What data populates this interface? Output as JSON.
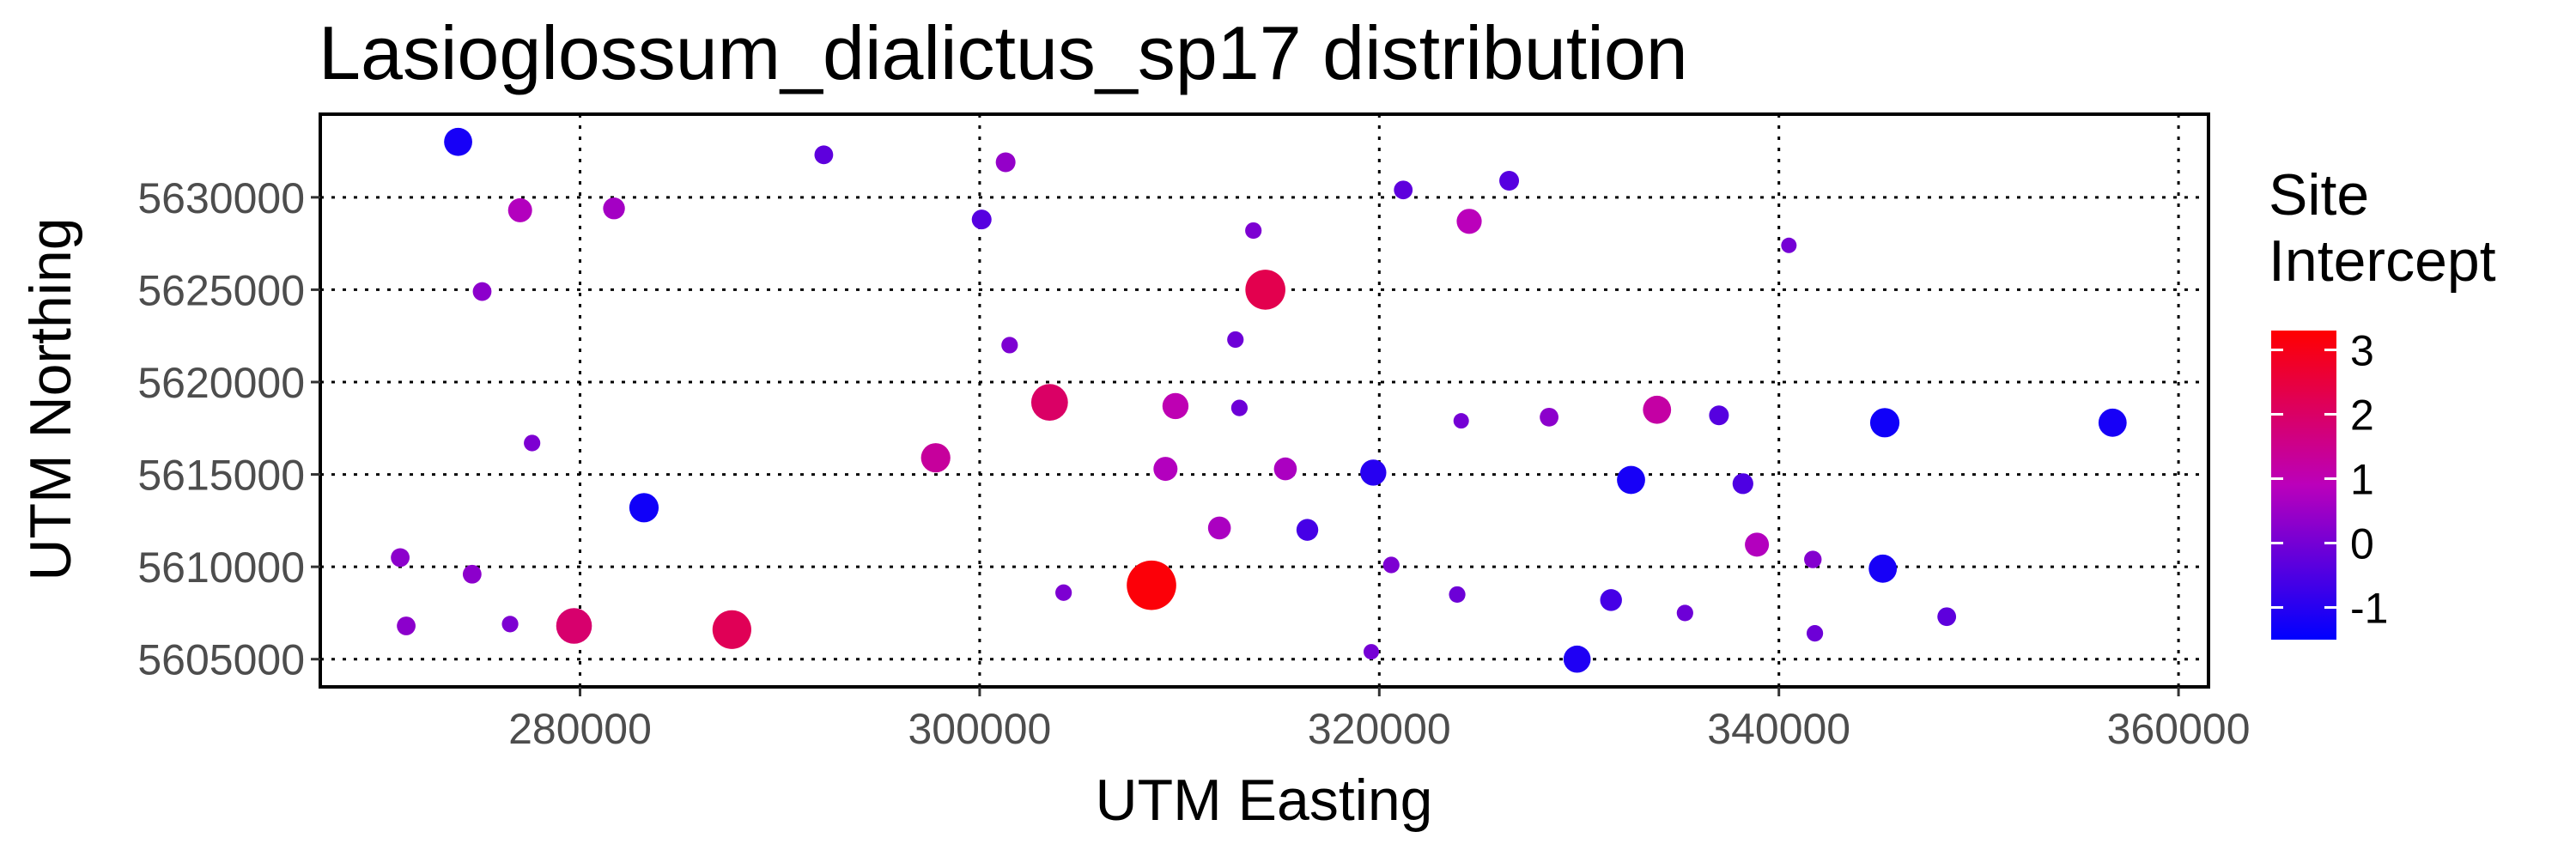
{
  "chart_data": {
    "type": "scatter",
    "title": "Lasioglossum_dialictus_sp17 distribution",
    "xlabel": "UTM Easting",
    "ylabel": "UTM Northing",
    "xlim": [
      267000,
      361500
    ],
    "ylim": [
      5603500,
      5634500
    ],
    "xticks": [
      280000,
      300000,
      320000,
      340000,
      360000
    ],
    "yticks": [
      5605000,
      5610000,
      5615000,
      5620000,
      5625000,
      5630000
    ],
    "xtick_labels": [
      "280000",
      "300000",
      "320000",
      "340000",
      "360000"
    ],
    "ytick_labels": [
      "5605000",
      "5610000",
      "5615000",
      "5620000",
      "5625000",
      "5630000"
    ],
    "grid": true,
    "legend": {
      "title": [
        "Site",
        "Intercept"
      ],
      "position": "right",
      "range": [
        -1.5,
        3.3
      ],
      "ticks": [
        3,
        2,
        1,
        0,
        -1
      ],
      "tick_labels": [
        "3",
        "2",
        "1",
        "0",
        "-1"
      ],
      "colors": {
        "low": "#0000ff",
        "mid": "#bb00bb",
        "high": "#ff0000"
      }
    },
    "size_encodes": "absolute value of site intercept",
    "points": [
      {
        "x": 273900,
        "y": 5633000,
        "value": -1.2
      },
      {
        "x": 277000,
        "y": 5629300,
        "value": 0.8
      },
      {
        "x": 281700,
        "y": 5629400,
        "value": 0.6
      },
      {
        "x": 275100,
        "y": 5624900,
        "value": 0.3
      },
      {
        "x": 277600,
        "y": 5616700,
        "value": 0.1
      },
      {
        "x": 271000,
        "y": 5610500,
        "value": 0.3
      },
      {
        "x": 274600,
        "y": 5609600,
        "value": 0.3
      },
      {
        "x": 271300,
        "y": 5606800,
        "value": 0.3
      },
      {
        "x": 276500,
        "y": 5606900,
        "value": 0.1
      },
      {
        "x": 279700,
        "y": 5606800,
        "value": 1.9
      },
      {
        "x": 283200,
        "y": 5613200,
        "value": -1.3
      },
      {
        "x": 287600,
        "y": 5606600,
        "value": 2.2
      },
      {
        "x": 292200,
        "y": 5632300,
        "value": -0.3
      },
      {
        "x": 300100,
        "y": 5628800,
        "value": -0.4
      },
      {
        "x": 301300,
        "y": 5631900,
        "value": 0.4
      },
      {
        "x": 301500,
        "y": 5622000,
        "value": 0.1
      },
      {
        "x": 297800,
        "y": 5615900,
        "value": 1.3
      },
      {
        "x": 303500,
        "y": 5618900,
        "value": 2.0
      },
      {
        "x": 304200,
        "y": 5608600,
        "value": 0.1
      },
      {
        "x": 308600,
        "y": 5609000,
        "value": 3.2
      },
      {
        "x": 309300,
        "y": 5615300,
        "value": 0.8
      },
      {
        "x": 309800,
        "y": 5618700,
        "value": 1.0
      },
      {
        "x": 312000,
        "y": 5612100,
        "value": 0.7
      },
      {
        "x": 312800,
        "y": 5622300,
        "value": -0.1
      },
      {
        "x": 313000,
        "y": 5618600,
        "value": -0.1
      },
      {
        "x": 313700,
        "y": 5628200,
        "value": 0.1
      },
      {
        "x": 314300,
        "y": 5625000,
        "value": 2.3
      },
      {
        "x": 315300,
        "y": 5615300,
        "value": 0.7
      },
      {
        "x": 316400,
        "y": 5612000,
        "value": -0.6
      },
      {
        "x": 319700,
        "y": 5615100,
        "value": -1.0
      },
      {
        "x": 319600,
        "y": 5605400,
        "value": 0.0
      },
      {
        "x": 320600,
        "y": 5610100,
        "value": 0.1
      },
      {
        "x": 321200,
        "y": 5630400,
        "value": -0.3
      },
      {
        "x": 323900,
        "y": 5608500,
        "value": -0.1
      },
      {
        "x": 324100,
        "y": 5617900,
        "value": 0.0
      },
      {
        "x": 324500,
        "y": 5628700,
        "value": 0.9
      },
      {
        "x": 326500,
        "y": 5630900,
        "value": -0.4
      },
      {
        "x": 328500,
        "y": 5618100,
        "value": 0.3
      },
      {
        "x": 329900,
        "y": 5605000,
        "value": -1.1
      },
      {
        "x": 331600,
        "y": 5608200,
        "value": -0.6
      },
      {
        "x": 332600,
        "y": 5614700,
        "value": -1.2
      },
      {
        "x": 333900,
        "y": 5618500,
        "value": 1.2
      },
      {
        "x": 335300,
        "y": 5607500,
        "value": -0.1
      },
      {
        "x": 337000,
        "y": 5618200,
        "value": -0.4
      },
      {
        "x": 338200,
        "y": 5614500,
        "value": -0.5
      },
      {
        "x": 338900,
        "y": 5611200,
        "value": 0.8
      },
      {
        "x": 340500,
        "y": 5627400,
        "value": 0.0
      },
      {
        "x": 341700,
        "y": 5610400,
        "value": 0.2
      },
      {
        "x": 341800,
        "y": 5606400,
        "value": -0.1
      },
      {
        "x": 345300,
        "y": 5617800,
        "value": -1.3
      },
      {
        "x": 345200,
        "y": 5609900,
        "value": -1.2
      },
      {
        "x": 348400,
        "y": 5607300,
        "value": -0.3
      },
      {
        "x": 356700,
        "y": 5617800,
        "value": -1.2
      }
    ]
  }
}
